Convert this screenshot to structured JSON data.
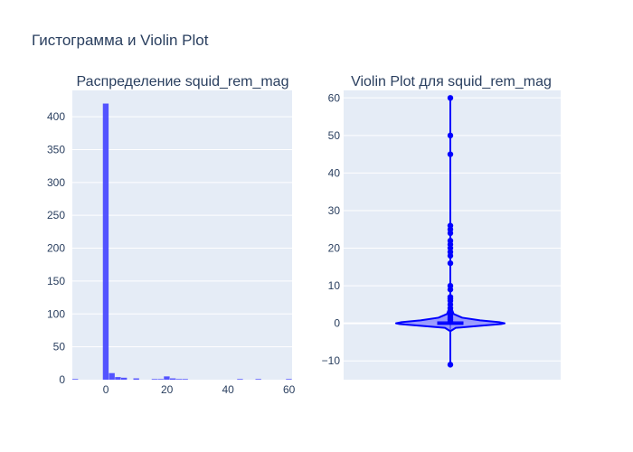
{
  "figure_title": "Гистограмма и Violin Plot",
  "colors": {
    "plot_bg": "#e5ecf6",
    "grid": "#ffffff",
    "text": "#2a3f5f",
    "hist_fill": "#4b4bff",
    "violin_line": "#0000ff",
    "violin_fill": "#7f7fff"
  },
  "chart_data": [
    {
      "type": "bar",
      "subtype": "histogram",
      "title": "Распределение squid_rem_mag",
      "xlim": [
        -11,
        61
      ],
      "ylim": [
        0,
        440
      ],
      "x_ticks": [
        0,
        20,
        40,
        60
      ],
      "y_ticks": [
        0,
        50,
        100,
        150,
        200,
        250,
        300,
        350,
        400
      ],
      "grid": true,
      "bins": [
        {
          "x0": -11,
          "x1": -9,
          "count": 1
        },
        {
          "x0": -1,
          "x1": 1,
          "count": 420
        },
        {
          "x0": 1,
          "x1": 3,
          "count": 10
        },
        {
          "x0": 3,
          "x1": 5,
          "count": 4
        },
        {
          "x0": 5,
          "x1": 7,
          "count": 3
        },
        {
          "x0": 9,
          "x1": 11,
          "count": 2
        },
        {
          "x0": 15,
          "x1": 17,
          "count": 1
        },
        {
          "x0": 17,
          "x1": 19,
          "count": 1
        },
        {
          "x0": 19,
          "x1": 21,
          "count": 5
        },
        {
          "x0": 21,
          "x1": 23,
          "count": 2
        },
        {
          "x0": 23,
          "x1": 25,
          "count": 1
        },
        {
          "x0": 25,
          "x1": 27,
          "count": 1
        },
        {
          "x0": 43,
          "x1": 45,
          "count": 1
        },
        {
          "x0": 49,
          "x1": 51,
          "count": 1
        },
        {
          "x0": 59,
          "x1": 61,
          "count": 1
        }
      ]
    },
    {
      "type": "violin",
      "title": "Violin Plot для squid_rem_mag",
      "ylim": [
        -15,
        62
      ],
      "y_ticks": [
        -10,
        0,
        10,
        20,
        30,
        40,
        50,
        60
      ],
      "grid": true,
      "box": {
        "q1": -0.3,
        "median": 0,
        "q3": 0.4
      },
      "density_profile": [
        {
          "y": -2,
          "w": 0.01
        },
        {
          "y": -1.2,
          "w": 0.1
        },
        {
          "y": -0.6,
          "w": 0.6
        },
        {
          "y": -0.2,
          "w": 0.93
        },
        {
          "y": 0,
          "w": 1.0
        },
        {
          "y": 0.3,
          "w": 0.9
        },
        {
          "y": 0.8,
          "w": 0.55
        },
        {
          "y": 1.5,
          "w": 0.22
        },
        {
          "y": 2.5,
          "w": 0.06
        },
        {
          "y": 4,
          "w": 0.02
        },
        {
          "y": 6,
          "w": 0.01
        }
      ],
      "points": [
        -11,
        0.5,
        1,
        1.5,
        2,
        2.5,
        3,
        4,
        5,
        6,
        6.5,
        7,
        9,
        10,
        16,
        18,
        19,
        20,
        21,
        22,
        24,
        25,
        26,
        45,
        50,
        60
      ]
    }
  ]
}
